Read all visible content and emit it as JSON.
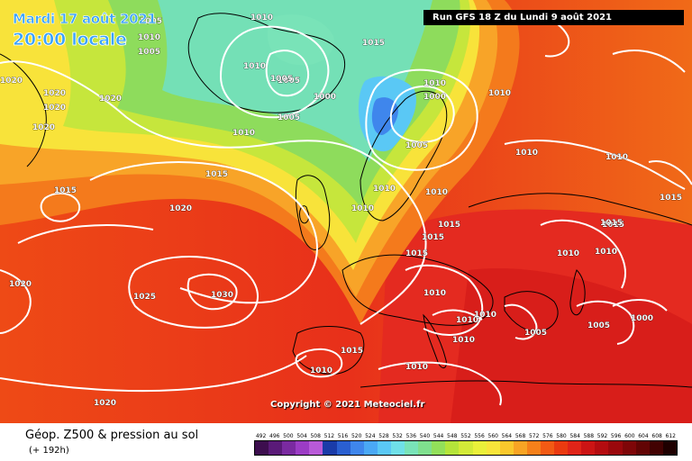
{
  "header": {
    "date": "Mardi 17 août 2021",
    "time": "20:00 locale",
    "run": "Run GFS 18 Z du Lundi 9 août 2021"
  },
  "copyright": "Copyright © 2021 Meteociel.fr",
  "product": {
    "title": "Géop. Z500 & pression au sol",
    "subtitle": "(+ 192h)"
  },
  "legend": {
    "ticks": [
      "492",
      "496",
      "500",
      "504",
      "508",
      "512",
      "516",
      "520",
      "524",
      "528",
      "532",
      "536",
      "540",
      "544",
      "548",
      "552",
      "556",
      "560",
      "564",
      "568",
      "572",
      "576",
      "580",
      "584",
      "588",
      "592",
      "596",
      "600",
      "604",
      "608",
      "612"
    ],
    "colors": [
      "#3d0e4e",
      "#5a1a78",
      "#7a2aa0",
      "#9b3cc4",
      "#b85ad8",
      "#1a3ba8",
      "#2a5fd0",
      "#3f86ec",
      "#4aa8f5",
      "#5ac8f5",
      "#6fe0e8",
      "#79e3b8",
      "#7fdf8e",
      "#92df5a",
      "#b4e43a",
      "#d2ea38",
      "#eaf03a",
      "#f8e53a",
      "#f9c82c",
      "#f8a424",
      "#f5801a",
      "#f25a14",
      "#ea3a10",
      "#e02418",
      "#cc1414",
      "#b40c10",
      "#9a080c",
      "#7e0608",
      "#620404",
      "#420202",
      "#1e0000"
    ]
  },
  "isobar_labels": [
    {
      "text": "1005"
    },
    {
      "text": "1010"
    },
    {
      "text": "1010"
    },
    {
      "text": "1015"
    },
    {
      "text": "1010"
    },
    {
      "text": "1005"
    },
    {
      "text": "1000"
    },
    {
      "text": "1005"
    },
    {
      "text": "1010"
    },
    {
      "text": "1005"
    },
    {
      "text": "1000"
    },
    {
      "text": "1020"
    },
    {
      "text": "1020"
    },
    {
      "text": "1020"
    },
    {
      "text": "1020"
    },
    {
      "text": "1020"
    },
    {
      "text": "1010"
    },
    {
      "text": "1010"
    },
    {
      "text": "1005"
    },
    {
      "text": "1005"
    },
    {
      "text": "1015"
    },
    {
      "text": "1010"
    },
    {
      "text": "1015"
    },
    {
      "text": "1010"
    },
    {
      "text": "1015"
    },
    {
      "text": "1020"
    },
    {
      "text": "1010"
    },
    {
      "text": "1010"
    },
    {
      "text": "1010"
    },
    {
      "text": "1015"
    },
    {
      "text": "1015"
    },
    {
      "text": "1015"
    },
    {
      "text": "1015"
    },
    {
      "text": "1010"
    },
    {
      "text": "1010"
    },
    {
      "text": "1015"
    },
    {
      "text": "1025"
    },
    {
      "text": "1030"
    },
    {
      "text": "1020"
    },
    {
      "text": "1010"
    },
    {
      "text": "1010"
    },
    {
      "text": "1010"
    },
    {
      "text": "1005"
    },
    {
      "text": "1005"
    },
    {
      "text": "1000"
    },
    {
      "text": "1015"
    },
    {
      "text": "1010"
    },
    {
      "text": "1010"
    },
    {
      "text": "1010"
    },
    {
      "text": "1020"
    }
  ]
}
